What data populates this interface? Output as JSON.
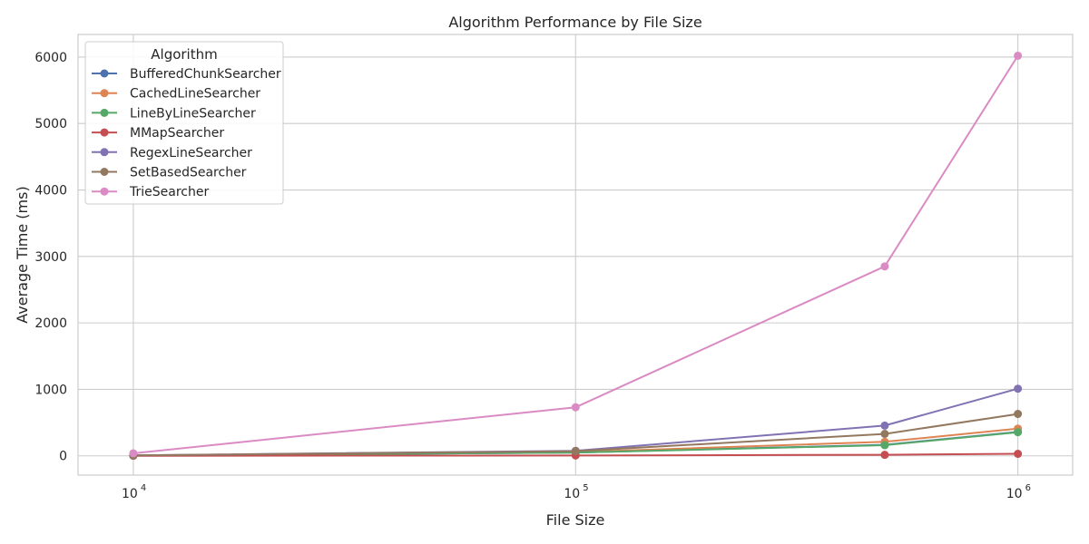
{
  "chart_data": {
    "type": "line",
    "title": "Algorithm Performance by File Size",
    "xlabel": "File Size",
    "ylabel": "Average Time (ms)",
    "xscale": "log",
    "xlim": [
      7500,
      1330000
    ],
    "ylim": [
      -290,
      6340
    ],
    "x_ticks": [
      {
        "value": 10000,
        "base": "10",
        "exp": "4"
      },
      {
        "value": 100000,
        "base": "10",
        "exp": "5"
      },
      {
        "value": 1000000,
        "base": "10",
        "exp": "6"
      }
    ],
    "y_ticks": [
      0,
      1000,
      2000,
      3000,
      4000,
      5000,
      6000
    ],
    "grid": true,
    "legend_title": "Algorithm",
    "legend_position": "top-left",
    "x": [
      10000,
      100000,
      500000,
      1000000
    ],
    "series": [
      {
        "name": "BufferedChunkSearcher",
        "color": "#4c72b0",
        "values": [
          4,
          50,
          165,
          360
        ]
      },
      {
        "name": "CachedLineSearcher",
        "color": "#dd8452",
        "values": [
          4,
          55,
          210,
          410
        ]
      },
      {
        "name": "LineByLineSearcher",
        "color": "#55a868",
        "values": [
          4,
          48,
          160,
          355
        ]
      },
      {
        "name": "MMapSearcher",
        "color": "#c44e52",
        "values": [
          1,
          5,
          15,
          30
        ]
      },
      {
        "name": "RegexLineSearcher",
        "color": "#8172b3",
        "values": [
          7,
          75,
          455,
          1010
        ]
      },
      {
        "name": "SetBasedSearcher",
        "color": "#937860",
        "values": [
          6,
          70,
          330,
          630
        ]
      },
      {
        "name": "TrieSearcher",
        "color": "#da8bc3",
        "values": [
          38,
          730,
          2850,
          6020
        ]
      }
    ]
  }
}
